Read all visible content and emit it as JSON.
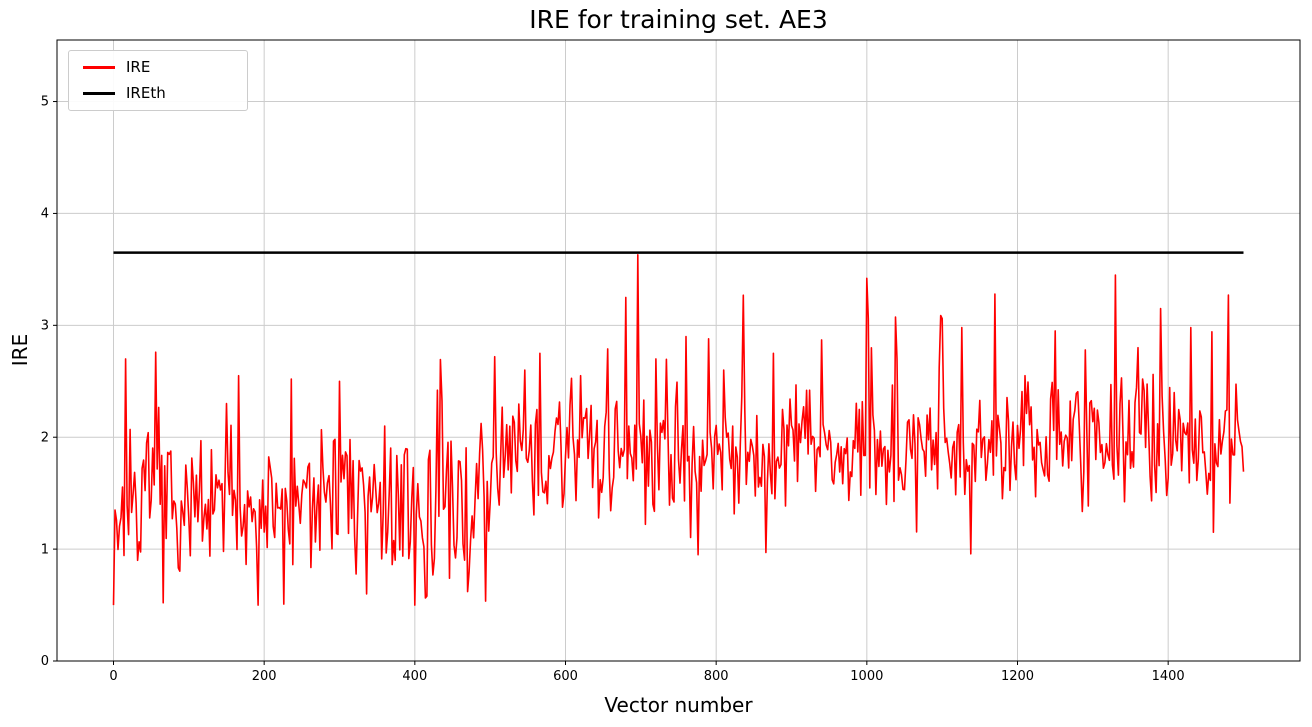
{
  "figure": {
    "title": "IRE for training set. AE3",
    "xlabel": "Vector number",
    "ylabel": "IRE"
  },
  "chart_data": {
    "type": "line",
    "title": "IRE for training set. AE3",
    "xlabel": "Vector number",
    "ylabel": "IRE",
    "xlim": [
      -75,
      1575
    ],
    "ylim": [
      0,
      5.55
    ],
    "x_ticks": [
      0,
      200,
      400,
      600,
      800,
      1000,
      1200,
      1400
    ],
    "y_ticks": [
      0,
      1,
      2,
      3,
      4,
      5
    ],
    "grid": true,
    "grid_color": "#cccccc",
    "legend": {
      "position": "upper-left",
      "entries": [
        {
          "label": "IRE",
          "color": "#ff0000"
        },
        {
          "label": "IREth",
          "color": "#000000"
        }
      ]
    },
    "series": [
      {
        "name": "IRE",
        "type": "noisy-line",
        "color": "#ff0000",
        "linewidth": 1.6,
        "x_start": 0,
        "x_end": 1500,
        "x_step": 2,
        "seed": 7,
        "segments": [
          {
            "x_from": 0,
            "x_to": 500,
            "mean": 1.4,
            "spread": 0.55,
            "min": 0.5,
            "max": 2.76
          },
          {
            "x_from": 500,
            "x_to": 1500,
            "mean_from": 1.82,
            "mean_to": 2.02,
            "spread": 0.5,
            "min": 0.95,
            "max": 3.65
          }
        ],
        "peaks": [
          [
            15,
            2.7
          ],
          [
            55,
            2.76
          ],
          [
            65,
            0.52
          ],
          [
            150,
            2.3
          ],
          [
            165,
            2.55
          ],
          [
            235,
            2.52
          ],
          [
            300,
            2.5
          ],
          [
            335,
            0.6
          ],
          [
            360,
            2.1
          ],
          [
            415,
            0.58
          ],
          [
            430,
            2.42
          ],
          [
            470,
            0.62
          ],
          [
            505,
            2.72
          ],
          [
            545,
            2.6
          ],
          [
            565,
            2.75
          ],
          [
            620,
            2.55
          ],
          [
            680,
            3.25
          ],
          [
            695,
            3.63
          ],
          [
            720,
            2.7
          ],
          [
            760,
            2.9
          ],
          [
            790,
            2.88
          ],
          [
            810,
            2.6
          ],
          [
            865,
            0.97
          ],
          [
            875,
            2.75
          ],
          [
            940,
            2.87
          ],
          [
            1000,
            3.42
          ],
          [
            1040,
            2.7
          ],
          [
            1100,
            3.06
          ],
          [
            1125,
            2.98
          ],
          [
            1170,
            3.28
          ],
          [
            1210,
            2.55
          ],
          [
            1250,
            2.95
          ],
          [
            1290,
            2.78
          ],
          [
            1330,
            3.45
          ],
          [
            1360,
            2.8
          ],
          [
            1390,
            3.15
          ],
          [
            1430,
            2.98
          ],
          [
            1480,
            3.27
          ]
        ]
      },
      {
        "name": "IREth",
        "type": "hline",
        "color": "#000000",
        "linewidth": 2.5,
        "y": 3.65,
        "x_from": 0,
        "x_to": 1500
      }
    ]
  }
}
